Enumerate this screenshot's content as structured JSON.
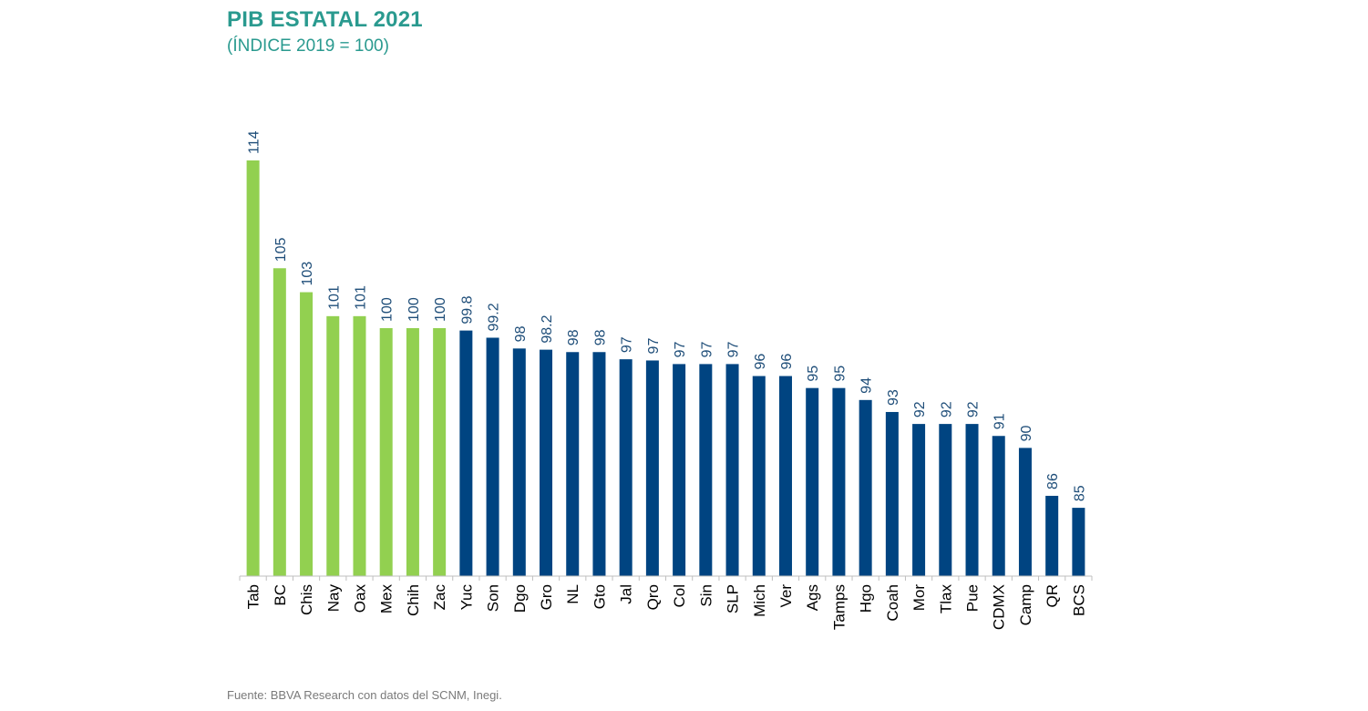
{
  "title": "PIB ESTATAL 2021",
  "subtitle": "(ÍNDICE 2019 = 100)",
  "source": "Fuente: BBVA Research con datos del SCNM, Inegi.",
  "colors": {
    "highlight": "#92d050",
    "base": "#004481",
    "axis": "#bfbfbf",
    "title": "#2a9a8f"
  },
  "chart_data": {
    "type": "bar",
    "title": "PIB ESTATAL 2021",
    "subtitle": "(ÍNDICE 2019 = 100)",
    "xlabel": "",
    "ylabel": "",
    "grid": false,
    "ylim": [
      0,
      114
    ],
    "categories": [
      "Tab",
      "BC",
      "Chis",
      "Nay",
      "Oax",
      "Mex",
      "Chih",
      "Zac",
      "Yuc",
      "Son",
      "Dgo",
      "Gro",
      "NL",
      "Gto",
      "Jal",
      "Qro",
      "Col",
      "Sin",
      "SLP",
      "Mich",
      "Ver",
      "Ags",
      "Tamps",
      "Hgo",
      "Coah",
      "Mor",
      "Tlax",
      "Pue",
      "CDMX",
      "Camp",
      "QR",
      "BCS"
    ],
    "values": [
      114,
      105,
      103,
      101,
      101,
      100,
      100,
      100,
      99.8,
      99.2,
      98.3,
      98.2,
      98,
      98,
      97.4,
      97.3,
      97,
      97,
      97,
      96,
      96,
      95,
      95,
      94,
      93,
      92,
      92,
      92,
      91,
      90,
      86,
      85
    ],
    "labels": [
      "114",
      "105",
      "103",
      "101",
      "101",
      "100",
      "100",
      "100",
      "99.8",
      "99.2",
      "98",
      "98.2",
      "98",
      "98",
      "97",
      "97",
      "97",
      "97",
      "97",
      "96",
      "96",
      "95",
      "95",
      "94",
      "93",
      "92",
      "92",
      "92",
      "91",
      "90",
      "86",
      "85"
    ],
    "highlighted": [
      true,
      true,
      true,
      true,
      true,
      true,
      true,
      true,
      false,
      false,
      false,
      false,
      false,
      false,
      false,
      false,
      false,
      false,
      false,
      false,
      false,
      false,
      false,
      false,
      false,
      false,
      false,
      false,
      false,
      false,
      false,
      false
    ]
  }
}
